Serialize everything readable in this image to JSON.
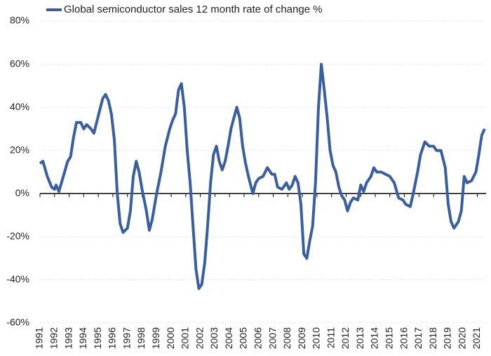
{
  "chart_data": {
    "type": "line",
    "x": [
      1991.0,
      1991.2,
      1991.5,
      1991.8,
      1992.0,
      1992.1,
      1992.3,
      1992.6,
      1992.9,
      1993.1,
      1993.3,
      1993.5,
      1993.8,
      1994.0,
      1994.2,
      1994.5,
      1994.7,
      1995.0,
      1995.3,
      1995.5,
      1995.7,
      1995.9,
      1996.1,
      1996.3,
      1996.5,
      1996.7,
      1997.0,
      1997.2,
      1997.4,
      1997.6,
      1997.8,
      1998.0,
      1998.3,
      1998.5,
      1998.7,
      1999.0,
      1999.3,
      1999.6,
      1999.9,
      2000.1,
      2000.3,
      2000.5,
      2000.7,
      2000.9,
      2001.1,
      2001.3,
      2001.5,
      2001.7,
      2001.9,
      2002.1,
      2002.3,
      2002.5,
      2002.7,
      2002.9,
      2003.1,
      2003.3,
      2003.5,
      2003.7,
      2003.9,
      2004.1,
      2004.3,
      2004.5,
      2004.7,
      2004.9,
      2005.1,
      2005.3,
      2005.6,
      2005.8,
      2006.0,
      2006.3,
      2006.6,
      2006.9,
      2007.1,
      2007.3,
      2007.6,
      2007.9,
      2008.1,
      2008.3,
      2008.5,
      2008.7,
      2008.9,
      2009.1,
      2009.3,
      2009.5,
      2009.7,
      2009.9,
      2010.1,
      2010.3,
      2010.5,
      2010.7,
      2010.9,
      2011.1,
      2011.3,
      2011.5,
      2011.7,
      2011.9,
      2012.1,
      2012.3,
      2012.5,
      2012.8,
      2013.0,
      2013.2,
      2013.4,
      2013.7,
      2013.9,
      2014.1,
      2014.4,
      2014.7,
      2015.0,
      2015.3,
      2015.6,
      2015.9,
      2016.1,
      2016.4,
      2016.6,
      2016.9,
      2017.1,
      2017.4,
      2017.7,
      2018.0,
      2018.2,
      2018.5,
      2018.8,
      2019.0,
      2019.2,
      2019.4,
      2019.7,
      2019.9,
      2020.1,
      2020.3,
      2020.6,
      2020.9,
      2021.1,
      2021.3,
      2021.5
    ],
    "series": [
      {
        "name": "Global semiconductor sales 12 month rate of change %",
        "color": "#3a5f9e",
        "values": [
          14,
          15,
          8,
          3,
          2,
          4,
          1,
          8,
          15,
          17,
          26,
          33,
          33,
          30,
          32,
          30,
          28,
          36,
          44,
          46,
          43,
          37,
          25,
          0,
          -14,
          -18,
          -16,
          -8,
          8,
          15,
          10,
          2,
          -8,
          -17,
          -12,
          0,
          10,
          22,
          30,
          34,
          37,
          48,
          51,
          40,
          20,
          5,
          -15,
          -35,
          -44,
          -42,
          -32,
          -15,
          5,
          18,
          22,
          15,
          11,
          15,
          22,
          30,
          35,
          40,
          35,
          22,
          14,
          8,
          0,
          5,
          7,
          8,
          12,
          9,
          9,
          3,
          2,
          5,
          2,
          4,
          8,
          5,
          -5,
          -28,
          -30,
          -22,
          -15,
          5,
          40,
          60,
          48,
          35,
          20,
          13,
          10,
          3,
          -1,
          -3,
          -8,
          -4,
          -2,
          -3,
          4,
          1,
          5,
          8,
          12,
          10,
          10,
          9,
          8,
          5,
          -2,
          -3,
          -5,
          -6,
          0,
          10,
          18,
          24,
          22,
          22,
          20,
          20,
          12,
          -5,
          -13,
          -16,
          -13,
          -8,
          8,
          5,
          6,
          10,
          18,
          27,
          30
        ]
      }
    ],
    "xlim": [
      1991,
      2021.6
    ],
    "xticks": [
      1991,
      1992,
      1993,
      1994,
      1995,
      1996,
      1997,
      1998,
      1999,
      2000,
      2001,
      2002,
      2003,
      2004,
      2005,
      2006,
      2007,
      2008,
      2009,
      2010,
      2011,
      2012,
      2013,
      2014,
      2015,
      2016,
      2017,
      2018,
      2019,
      2020,
      2021
    ],
    "ylim": [
      -60,
      80
    ],
    "yticks": [
      {
        "value": -60,
        "label": "-60%"
      },
      {
        "value": -40,
        "label": "-40%"
      },
      {
        "value": -20,
        "label": "-20%"
      },
      {
        "value": 0,
        "label": "0%"
      },
      {
        "value": 20,
        "label": "20%"
      },
      {
        "value": 40,
        "label": "40%"
      },
      {
        "value": 60,
        "label": "60%"
      },
      {
        "value": 80,
        "label": "80%"
      }
    ],
    "grid": true,
    "legend": "top-left"
  }
}
